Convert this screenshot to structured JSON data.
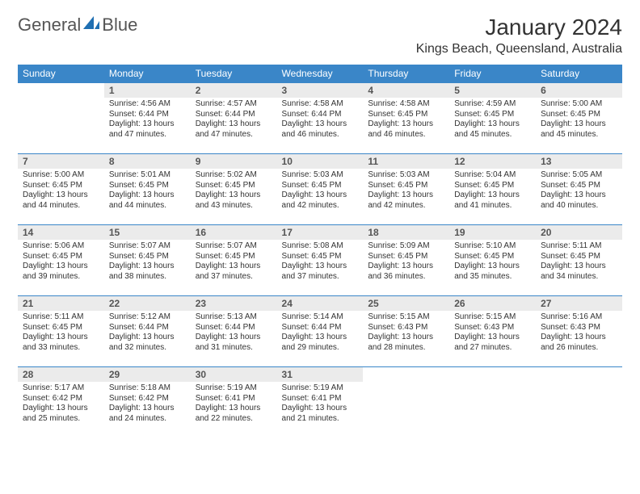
{
  "brand": {
    "text1": "General",
    "text2": "Blue",
    "accent_color": "#1f6fb2"
  },
  "title": "January 2024",
  "location": "Kings Beach, Queensland, Australia",
  "colors": {
    "header_bg": "#3a86c8",
    "header_fg": "#ffffff",
    "daynum_bg": "#ebebeb",
    "border": "#3a86c8",
    "text": "#333333"
  },
  "typography": {
    "title_fontsize": 28,
    "location_fontsize": 16,
    "dayhead_fontsize": 12,
    "body_fontsize": 10
  },
  "day_headers": [
    "Sunday",
    "Monday",
    "Tuesday",
    "Wednesday",
    "Thursday",
    "Friday",
    "Saturday"
  ],
  "weeks": [
    [
      null,
      {
        "n": "1",
        "sr": "Sunrise: 4:56 AM",
        "ss": "Sunset: 6:44 PM",
        "d1": "Daylight: 13 hours",
        "d2": "and 47 minutes."
      },
      {
        "n": "2",
        "sr": "Sunrise: 4:57 AM",
        "ss": "Sunset: 6:44 PM",
        "d1": "Daylight: 13 hours",
        "d2": "and 47 minutes."
      },
      {
        "n": "3",
        "sr": "Sunrise: 4:58 AM",
        "ss": "Sunset: 6:44 PM",
        "d1": "Daylight: 13 hours",
        "d2": "and 46 minutes."
      },
      {
        "n": "4",
        "sr": "Sunrise: 4:58 AM",
        "ss": "Sunset: 6:45 PM",
        "d1": "Daylight: 13 hours",
        "d2": "and 46 minutes."
      },
      {
        "n": "5",
        "sr": "Sunrise: 4:59 AM",
        "ss": "Sunset: 6:45 PM",
        "d1": "Daylight: 13 hours",
        "d2": "and 45 minutes."
      },
      {
        "n": "6",
        "sr": "Sunrise: 5:00 AM",
        "ss": "Sunset: 6:45 PM",
        "d1": "Daylight: 13 hours",
        "d2": "and 45 minutes."
      }
    ],
    [
      {
        "n": "7",
        "sr": "Sunrise: 5:00 AM",
        "ss": "Sunset: 6:45 PM",
        "d1": "Daylight: 13 hours",
        "d2": "and 44 minutes."
      },
      {
        "n": "8",
        "sr": "Sunrise: 5:01 AM",
        "ss": "Sunset: 6:45 PM",
        "d1": "Daylight: 13 hours",
        "d2": "and 44 minutes."
      },
      {
        "n": "9",
        "sr": "Sunrise: 5:02 AM",
        "ss": "Sunset: 6:45 PM",
        "d1": "Daylight: 13 hours",
        "d2": "and 43 minutes."
      },
      {
        "n": "10",
        "sr": "Sunrise: 5:03 AM",
        "ss": "Sunset: 6:45 PM",
        "d1": "Daylight: 13 hours",
        "d2": "and 42 minutes."
      },
      {
        "n": "11",
        "sr": "Sunrise: 5:03 AM",
        "ss": "Sunset: 6:45 PM",
        "d1": "Daylight: 13 hours",
        "d2": "and 42 minutes."
      },
      {
        "n": "12",
        "sr": "Sunrise: 5:04 AM",
        "ss": "Sunset: 6:45 PM",
        "d1": "Daylight: 13 hours",
        "d2": "and 41 minutes."
      },
      {
        "n": "13",
        "sr": "Sunrise: 5:05 AM",
        "ss": "Sunset: 6:45 PM",
        "d1": "Daylight: 13 hours",
        "d2": "and 40 minutes."
      }
    ],
    [
      {
        "n": "14",
        "sr": "Sunrise: 5:06 AM",
        "ss": "Sunset: 6:45 PM",
        "d1": "Daylight: 13 hours",
        "d2": "and 39 minutes."
      },
      {
        "n": "15",
        "sr": "Sunrise: 5:07 AM",
        "ss": "Sunset: 6:45 PM",
        "d1": "Daylight: 13 hours",
        "d2": "and 38 minutes."
      },
      {
        "n": "16",
        "sr": "Sunrise: 5:07 AM",
        "ss": "Sunset: 6:45 PM",
        "d1": "Daylight: 13 hours",
        "d2": "and 37 minutes."
      },
      {
        "n": "17",
        "sr": "Sunrise: 5:08 AM",
        "ss": "Sunset: 6:45 PM",
        "d1": "Daylight: 13 hours",
        "d2": "and 37 minutes."
      },
      {
        "n": "18",
        "sr": "Sunrise: 5:09 AM",
        "ss": "Sunset: 6:45 PM",
        "d1": "Daylight: 13 hours",
        "d2": "and 36 minutes."
      },
      {
        "n": "19",
        "sr": "Sunrise: 5:10 AM",
        "ss": "Sunset: 6:45 PM",
        "d1": "Daylight: 13 hours",
        "d2": "and 35 minutes."
      },
      {
        "n": "20",
        "sr": "Sunrise: 5:11 AM",
        "ss": "Sunset: 6:45 PM",
        "d1": "Daylight: 13 hours",
        "d2": "and 34 minutes."
      }
    ],
    [
      {
        "n": "21",
        "sr": "Sunrise: 5:11 AM",
        "ss": "Sunset: 6:45 PM",
        "d1": "Daylight: 13 hours",
        "d2": "and 33 minutes."
      },
      {
        "n": "22",
        "sr": "Sunrise: 5:12 AM",
        "ss": "Sunset: 6:44 PM",
        "d1": "Daylight: 13 hours",
        "d2": "and 32 minutes."
      },
      {
        "n": "23",
        "sr": "Sunrise: 5:13 AM",
        "ss": "Sunset: 6:44 PM",
        "d1": "Daylight: 13 hours",
        "d2": "and 31 minutes."
      },
      {
        "n": "24",
        "sr": "Sunrise: 5:14 AM",
        "ss": "Sunset: 6:44 PM",
        "d1": "Daylight: 13 hours",
        "d2": "and 29 minutes."
      },
      {
        "n": "25",
        "sr": "Sunrise: 5:15 AM",
        "ss": "Sunset: 6:43 PM",
        "d1": "Daylight: 13 hours",
        "d2": "and 28 minutes."
      },
      {
        "n": "26",
        "sr": "Sunrise: 5:15 AM",
        "ss": "Sunset: 6:43 PM",
        "d1": "Daylight: 13 hours",
        "d2": "and 27 minutes."
      },
      {
        "n": "27",
        "sr": "Sunrise: 5:16 AM",
        "ss": "Sunset: 6:43 PM",
        "d1": "Daylight: 13 hours",
        "d2": "and 26 minutes."
      }
    ],
    [
      {
        "n": "28",
        "sr": "Sunrise: 5:17 AM",
        "ss": "Sunset: 6:42 PM",
        "d1": "Daylight: 13 hours",
        "d2": "and 25 minutes."
      },
      {
        "n": "29",
        "sr": "Sunrise: 5:18 AM",
        "ss": "Sunset: 6:42 PM",
        "d1": "Daylight: 13 hours",
        "d2": "and 24 minutes."
      },
      {
        "n": "30",
        "sr": "Sunrise: 5:19 AM",
        "ss": "Sunset: 6:41 PM",
        "d1": "Daylight: 13 hours",
        "d2": "and 22 minutes."
      },
      {
        "n": "31",
        "sr": "Sunrise: 5:19 AM",
        "ss": "Sunset: 6:41 PM",
        "d1": "Daylight: 13 hours",
        "d2": "and 21 minutes."
      },
      null,
      null,
      null
    ]
  ]
}
